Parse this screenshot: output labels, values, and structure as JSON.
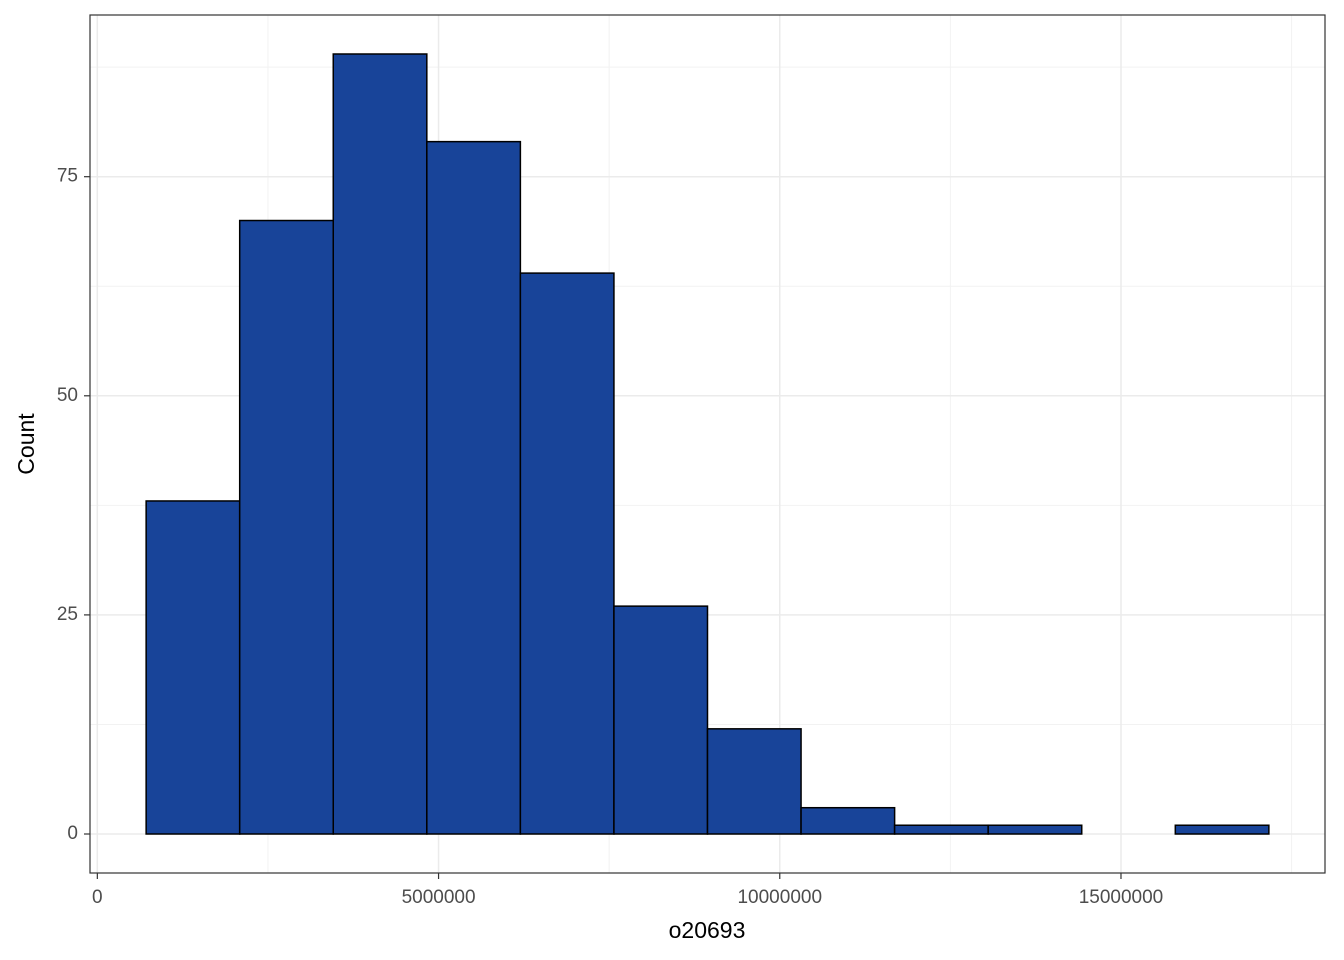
{
  "chart_data": {
    "type": "histogram",
    "x_label": "o20693",
    "y_label": "Count",
    "bins": [
      715000,
      2086000,
      3457000,
      4828000,
      6199000,
      7570000,
      8941000,
      10312000,
      11683000,
      13054000,
      14425000,
      15796000,
      17167000
    ],
    "counts": [
      38,
      70,
      89,
      79,
      64,
      26,
      12,
      3,
      1,
      1,
      0,
      1
    ],
    "color": "#184499",
    "xlim": [
      -107600,
      17989600
    ],
    "ylim": [
      -4.45,
      93.45
    ],
    "xticks": [
      0,
      5000000,
      10000000,
      15000000
    ],
    "yticks": [
      0,
      25,
      50,
      75
    ],
    "x_minor_ticks": [
      2500000,
      7500000,
      12500000,
      17500000
    ],
    "y_minor_ticks": [
      12.5,
      37.5,
      62.5,
      87.5
    ],
    "grid": true
  }
}
